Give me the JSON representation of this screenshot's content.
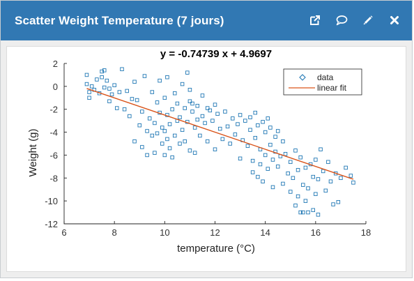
{
  "widget": {
    "title": "Scatter Weight Temperature (7 jours)",
    "actions": [
      {
        "name": "open-external-button",
        "icon": "external-link-icon"
      },
      {
        "name": "comment-button",
        "icon": "comment-icon"
      },
      {
        "name": "edit-button",
        "icon": "pencil-icon"
      },
      {
        "name": "close-button",
        "icon": "close-icon"
      }
    ]
  },
  "colors": {
    "header": "#3178b3",
    "series_data": "#1f77b4",
    "series_fit": "#d95319"
  },
  "chart_data": {
    "type": "scatter",
    "title": "y = -0.74739 x + 4.9697",
    "xlabel": "temperature (°C)",
    "ylabel": "Weight (g)",
    "xlim": [
      6,
      18
    ],
    "ylim": [
      -12,
      2
    ],
    "xticks": [
      6,
      8,
      10,
      12,
      14,
      16,
      18
    ],
    "yticks": [
      -12,
      -10,
      -8,
      -6,
      -4,
      -2,
      0,
      2
    ],
    "grid": false,
    "legend_position": "top-right",
    "series": [
      {
        "name": "data",
        "marker": "square",
        "points": [
          [
            6.9,
            1.0
          ],
          [
            6.9,
            0.2
          ],
          [
            7.0,
            -0.5
          ],
          [
            7.0,
            -1.0
          ],
          [
            7.1,
            0.0
          ],
          [
            7.2,
            -0.3
          ],
          [
            7.3,
            0.6
          ],
          [
            7.4,
            -0.6
          ],
          [
            7.5,
            1.3
          ],
          [
            7.5,
            0.8
          ],
          [
            7.6,
            -0.1
          ],
          [
            7.6,
            1.4
          ],
          [
            7.7,
            0.5
          ],
          [
            7.8,
            -0.2
          ],
          [
            7.8,
            -1.3
          ],
          [
            7.9,
            -0.7
          ],
          [
            8.0,
            0.1
          ],
          [
            8.1,
            -1.9
          ],
          [
            8.2,
            -0.5
          ],
          [
            8.3,
            1.5
          ],
          [
            8.4,
            -2.0
          ],
          [
            8.5,
            -0.4
          ],
          [
            8.6,
            -2.6
          ],
          [
            8.7,
            -1.1
          ],
          [
            8.8,
            -4.8
          ],
          [
            8.8,
            0.4
          ],
          [
            8.9,
            -1.2
          ],
          [
            9.0,
            -3.4
          ],
          [
            9.1,
            -5.3
          ],
          [
            9.1,
            -2.2
          ],
          [
            9.2,
            0.9
          ],
          [
            9.3,
            -3.9
          ],
          [
            9.3,
            -6.0
          ],
          [
            9.4,
            -2.8
          ],
          [
            9.5,
            -4.3
          ],
          [
            9.5,
            -0.5
          ],
          [
            9.6,
            -3.2
          ],
          [
            9.6,
            -5.8
          ],
          [
            9.7,
            -1.4
          ],
          [
            9.7,
            -4.1
          ],
          [
            9.8,
            0.5
          ],
          [
            9.8,
            -2.3
          ],
          [
            9.9,
            -3.6
          ],
          [
            9.9,
            -5.0
          ],
          [
            10.0,
            -1.0
          ],
          [
            10.0,
            -3.9
          ],
          [
            10.0,
            -6.0
          ],
          [
            10.1,
            -2.5
          ],
          [
            10.1,
            -4.6
          ],
          [
            10.1,
            0.8
          ],
          [
            10.2,
            -3.3
          ],
          [
            10.2,
            -5.4
          ],
          [
            10.3,
            -2.0
          ],
          [
            10.3,
            -6.2
          ],
          [
            10.4,
            -0.6
          ],
          [
            10.4,
            -4.3
          ],
          [
            10.5,
            -3.0
          ],
          [
            10.5,
            -1.5
          ],
          [
            10.6,
            -5.0
          ],
          [
            10.6,
            -2.7
          ],
          [
            10.7,
            -3.8
          ],
          [
            10.7,
            0.2
          ],
          [
            10.8,
            -1.9
          ],
          [
            10.8,
            -4.8
          ],
          [
            10.9,
            1.2
          ],
          [
            10.9,
            -3.1
          ],
          [
            11.0,
            -1.3
          ],
          [
            11.0,
            -5.6
          ],
          [
            11.0,
            -0.3
          ],
          [
            11.1,
            -2.2
          ],
          [
            11.1,
            -1.5
          ],
          [
            11.2,
            -3.6
          ],
          [
            11.2,
            -5.8
          ],
          [
            11.3,
            -1.7
          ],
          [
            11.3,
            -2.9
          ],
          [
            11.4,
            -4.3
          ],
          [
            11.5,
            -0.8
          ],
          [
            11.5,
            -2.6
          ],
          [
            11.6,
            -3.2
          ],
          [
            11.7,
            -1.9
          ],
          [
            11.7,
            -4.8
          ],
          [
            11.8,
            -2.1
          ],
          [
            11.9,
            -3.0
          ],
          [
            12.0,
            -1.6
          ],
          [
            12.0,
            -5.5
          ],
          [
            12.1,
            -2.4
          ],
          [
            12.2,
            -3.7
          ],
          [
            12.3,
            -4.6
          ],
          [
            12.4,
            -2.2
          ],
          [
            12.5,
            -3.5
          ],
          [
            12.6,
            -5.0
          ],
          [
            12.7,
            -2.8
          ],
          [
            12.8,
            -4.2
          ],
          [
            12.9,
            -3.3
          ],
          [
            13.0,
            -2.5
          ],
          [
            13.0,
            -6.3
          ],
          [
            13.1,
            -4.7
          ],
          [
            13.2,
            -3.0
          ],
          [
            13.3,
            -5.2
          ],
          [
            13.4,
            -2.7
          ],
          [
            13.4,
            -3.8
          ],
          [
            13.5,
            -6.5
          ],
          [
            13.5,
            -7.5
          ],
          [
            13.6,
            -4.5
          ],
          [
            13.6,
            -2.3
          ],
          [
            13.7,
            -3.4
          ],
          [
            13.7,
            -7.9
          ],
          [
            13.8,
            -5.5
          ],
          [
            13.8,
            -6.8
          ],
          [
            13.9,
            -3.1
          ],
          [
            13.9,
            -8.3
          ],
          [
            14.0,
            -4.0
          ],
          [
            14.0,
            -6.0
          ],
          [
            14.1,
            -2.8
          ],
          [
            14.1,
            -7.2
          ],
          [
            14.2,
            -5.1
          ],
          [
            14.2,
            -3.6
          ],
          [
            14.3,
            -6.4
          ],
          [
            14.3,
            -8.8
          ],
          [
            14.4,
            -4.4
          ],
          [
            14.4,
            -5.7
          ],
          [
            14.5,
            -7.0
          ],
          [
            14.5,
            -3.9
          ],
          [
            14.6,
            -6.1
          ],
          [
            14.7,
            -4.8
          ],
          [
            14.7,
            -8.5
          ],
          [
            14.8,
            -5.9
          ],
          [
            14.9,
            -7.6
          ],
          [
            15.0,
            -6.6
          ],
          [
            15.0,
            -9.2
          ],
          [
            15.1,
            -8.0
          ],
          [
            15.2,
            -5.6
          ],
          [
            15.2,
            -10.4
          ],
          [
            15.3,
            -7.3
          ],
          [
            15.3,
            -9.6
          ],
          [
            15.4,
            -6.2
          ],
          [
            15.4,
            -11.0
          ],
          [
            15.5,
            -8.6
          ],
          [
            15.5,
            -11.0
          ],
          [
            15.6,
            -7.1
          ],
          [
            15.6,
            -10.0
          ],
          [
            15.7,
            -11.0
          ],
          [
            15.7,
            -8.9
          ],
          [
            15.8,
            -6.8
          ],
          [
            15.9,
            -7.9
          ],
          [
            15.9,
            -10.8
          ],
          [
            16.0,
            -6.4
          ],
          [
            16.0,
            -9.4
          ],
          [
            16.1,
            -11.2
          ],
          [
            16.1,
            -8.1
          ],
          [
            16.2,
            -5.5
          ],
          [
            16.3,
            -7.4
          ],
          [
            16.4,
            -9.1
          ],
          [
            16.5,
            -6.6
          ],
          [
            16.6,
            -8.3
          ],
          [
            16.7,
            -10.3
          ],
          [
            16.8,
            -7.6
          ],
          [
            16.9,
            -10.1
          ],
          [
            17.0,
            -8.0
          ],
          [
            17.2,
            -7.1
          ],
          [
            17.4,
            -7.8
          ],
          [
            17.5,
            -8.4
          ]
        ]
      },
      {
        "name": "linear fit",
        "type": "line",
        "slope": -0.74739,
        "intercept": 4.9697,
        "x_range": [
          6.9,
          17.5
        ]
      }
    ]
  }
}
